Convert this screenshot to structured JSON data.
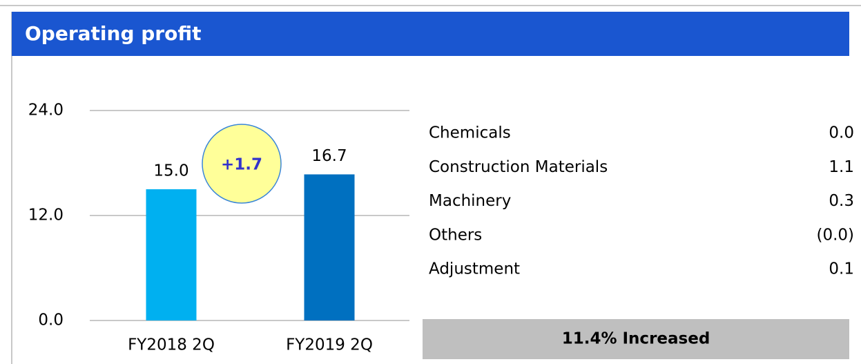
{
  "header": {
    "title": "Operating profit"
  },
  "chart_data": {
    "type": "bar",
    "categories": [
      "FY2018 2Q",
      "FY2019 2Q"
    ],
    "values": [
      15.0,
      16.7
    ],
    "value_labels": [
      "15.0",
      "16.7"
    ],
    "colors": [
      "#00b0f0",
      "#0070c0"
    ],
    "ylim": [
      0,
      24
    ],
    "yticks": [
      {
        "value": 0,
        "label": "0.0"
      },
      {
        "value": 12,
        "label": "12.0"
      },
      {
        "value": 24,
        "label": "24.0"
      }
    ],
    "grid": true,
    "annotation": "+1.7"
  },
  "table": {
    "rows": [
      [
        "Chemicals",
        "0.0"
      ],
      [
        "Construction Materials",
        "1.1"
      ],
      [
        "Machinery",
        "0.3"
      ],
      [
        "Others",
        "(0.0)"
      ],
      [
        "Adjustment",
        "0.1"
      ]
    ]
  },
  "footer": {
    "text": "11.4% Increased"
  }
}
